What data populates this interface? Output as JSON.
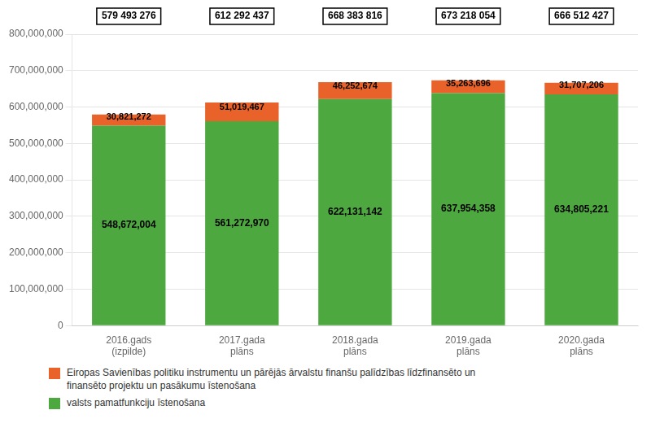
{
  "chart_data": {
    "type": "bar",
    "stacked": true,
    "categories": [
      "2016.gads\n(izpilde)",
      "2017.gada\nplāns",
      "2018.gada\nplāns",
      "2019.gada\nplāns",
      "2020.gada\nplāns"
    ],
    "series": [
      {
        "name": "valsts pamatfunkciju īstenošana",
        "color": "#4EA840",
        "values": [
          548672004,
          561272970,
          622131142,
          637954358,
          634805221
        ],
        "value_labels": [
          "548,672,004",
          "561,272,970",
          "622,131,142",
          "637,954,358",
          "634,805,221"
        ]
      },
      {
        "name": "Eiropas Savienības politiku instrumentu un pārējās ārvalstu finanšu palīdzības līdzfinansēto un\nfinansēto projektu un pasākumu īstenošana",
        "color": "#E8622A",
        "values": [
          30821272,
          51019467,
          46252674,
          35263696,
          31707206
        ],
        "value_labels": [
          "30,821,272",
          "51,019,467",
          "46,252,674",
          "35,263,696",
          "31,707,206"
        ]
      }
    ],
    "totals": [
      579493276,
      612292437,
      668383816,
      673218054,
      666512427
    ],
    "total_labels": [
      "579 493 276",
      "612 292 437",
      "668 383 816",
      "673 218 054",
      "666 512 427"
    ],
    "ylim": [
      0,
      800000000
    ],
    "yticks": [
      0,
      {
        "value": 100000000,
        "label": "100,000,000"
      },
      {
        "value": 200000000,
        "label": "200,000,000"
      },
      {
        "value": 300000000,
        "label": "300,000,000"
      },
      {
        "value": 400000000,
        "label": "400,000,000"
      },
      {
        "value": 500000000,
        "label": "500,000,000"
      },
      {
        "value": 600000000,
        "label": "600,000,000"
      },
      {
        "value": 700000000,
        "label": "700,000,000"
      },
      {
        "value": 800000000,
        "label": "800,000,000"
      }
    ],
    "grid": true,
    "data_labels": true,
    "legend": "bottom"
  }
}
